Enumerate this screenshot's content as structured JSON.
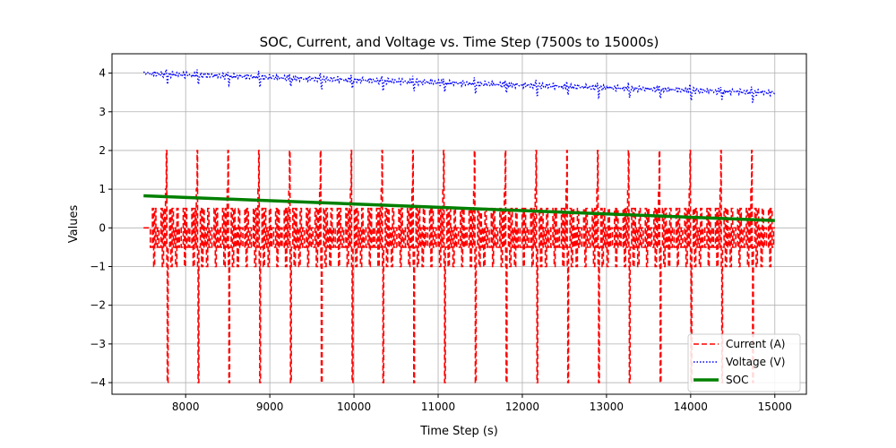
{
  "chart_data": {
    "type": "line",
    "title": "SOC, Current, and Voltage vs. Time Step (7500s to 15000s)",
    "xlabel": "Time Step (s)",
    "ylabel": "Values",
    "xlim": [
      7125,
      15375
    ],
    "ylim": [
      -4.3,
      4.5
    ],
    "x_ticks": [
      8000,
      9000,
      10000,
      11000,
      12000,
      13000,
      14000,
      15000
    ],
    "x_tick_labels": [
      "8000",
      "9000",
      "10000",
      "11000",
      "12000",
      "13000",
      "14000",
      "15000"
    ],
    "y_ticks": [
      -4,
      -3,
      -2,
      -1,
      0,
      1,
      2,
      3,
      4
    ],
    "y_tick_labels": [
      "−4",
      "−3",
      "−2",
      "−1",
      "0",
      "1",
      "2",
      "3",
      "4"
    ],
    "grid": true,
    "legend_position": "lower right",
    "x_range": [
      7500,
      15000
    ],
    "series": [
      {
        "name": "Current (A)",
        "color": "#ff0000",
        "style": "dashed",
        "cycle_period_s": 366,
        "cycle_start_s": 7500,
        "levels_A": [
          2,
          1,
          0.5,
          0,
          -0.5,
          -1,
          -4
        ],
        "peak_high_A": 2,
        "peak_low_A": -4
      },
      {
        "name": "Voltage (V)",
        "color": "#0000ff",
        "style": "dotted",
        "start_V": 4.0,
        "end_V": 3.5,
        "fluctuation_V": 0.3
      },
      {
        "name": "SOC",
        "color": "#008000",
        "style": "solid",
        "x": [
          7500,
          15000
        ],
        "values": [
          0.83,
          0.19
        ]
      }
    ]
  }
}
